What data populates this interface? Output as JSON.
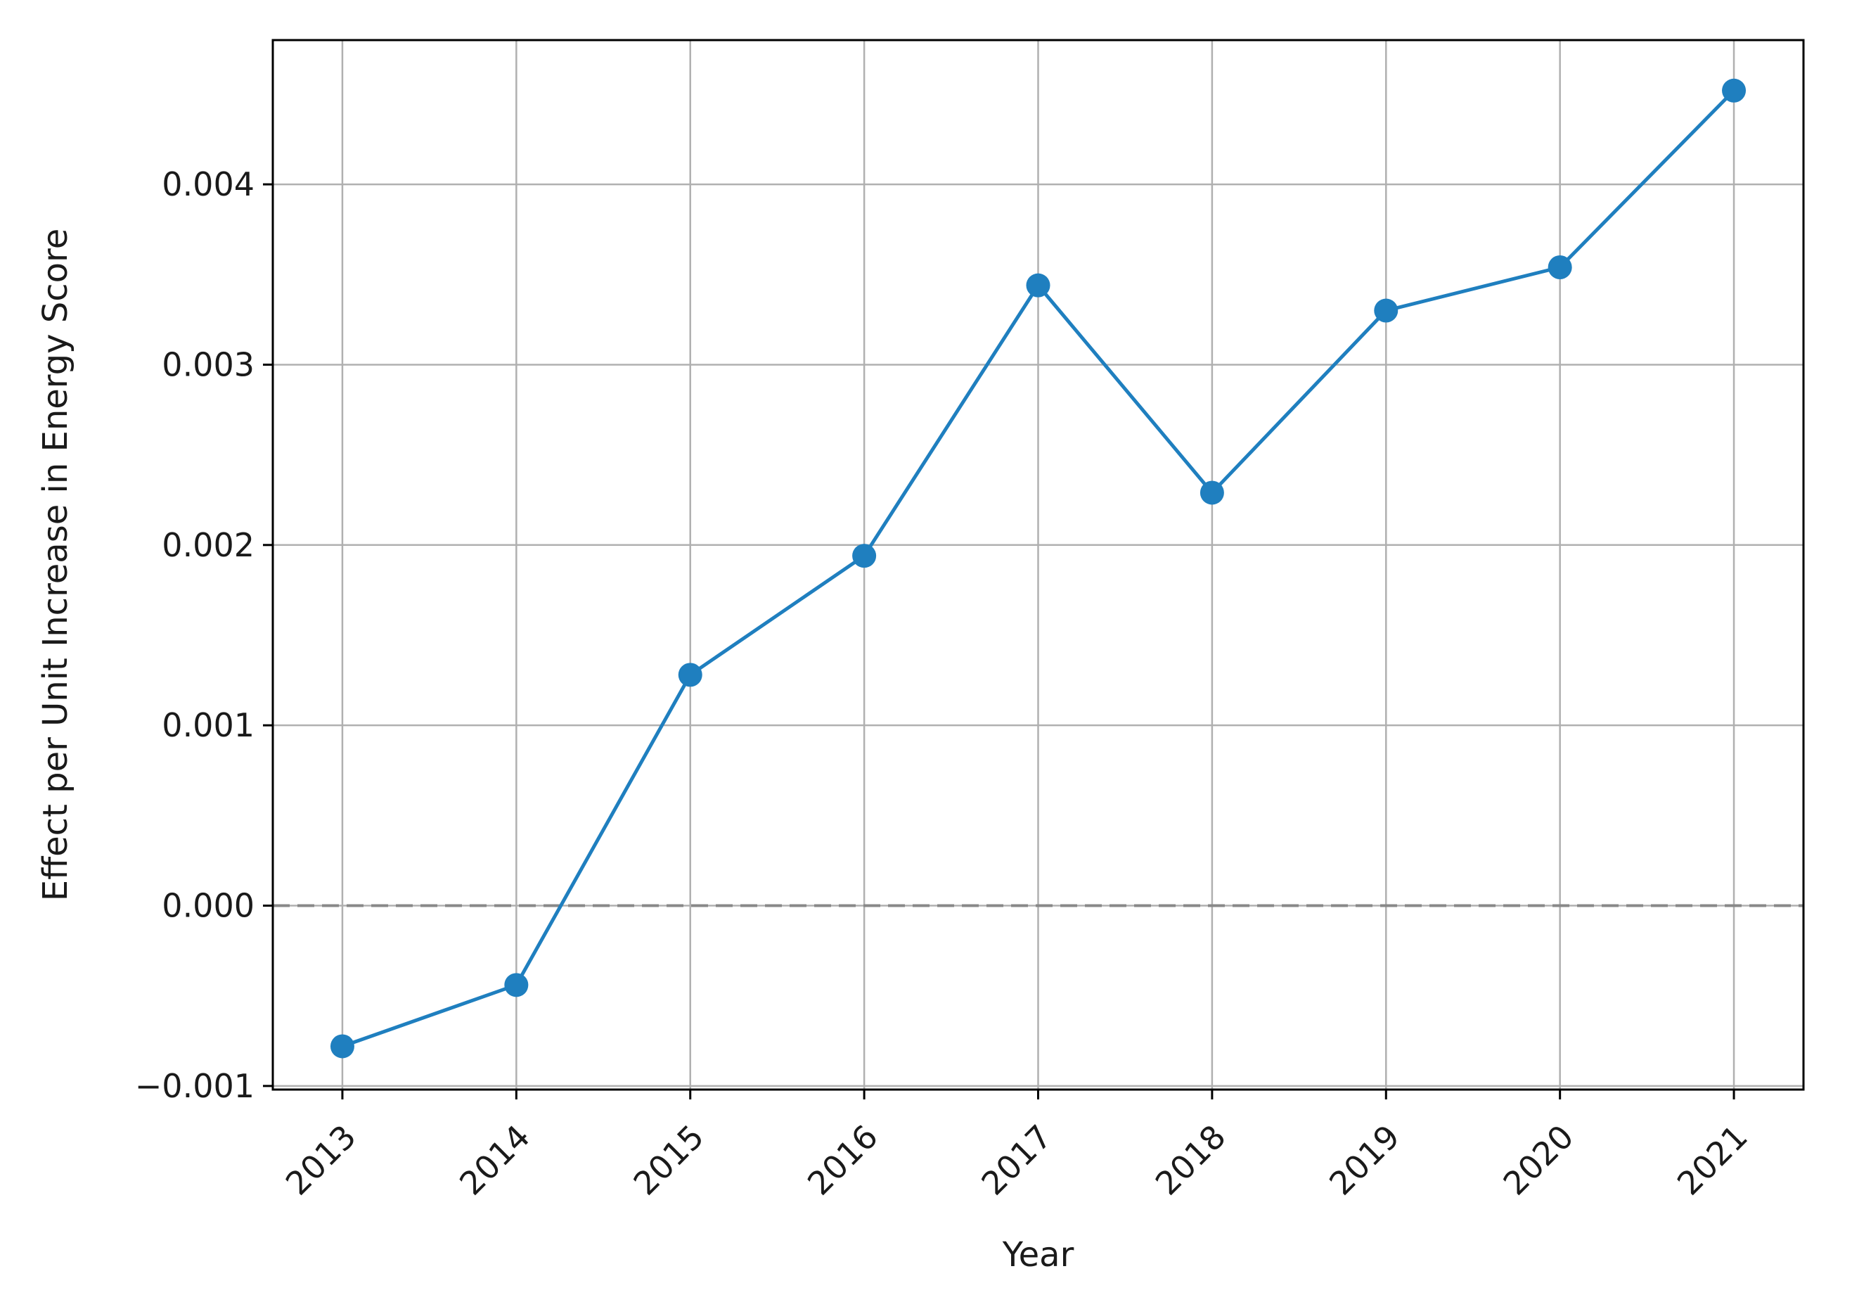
{
  "chart_data": {
    "type": "line",
    "xlabel": "Year",
    "ylabel": "Effect per Unit Increase in Energy Score",
    "x": [
      2013,
      2014,
      2015,
      2016,
      2017,
      2018,
      2019,
      2020,
      2021
    ],
    "x_tick_labels": [
      "2013",
      "2014",
      "2015",
      "2016",
      "2017",
      "2018",
      "2019",
      "2020",
      "2021"
    ],
    "series": [
      {
        "values": [
          -0.00078,
          -0.00044,
          0.00128,
          0.00194,
          0.00344,
          0.00229,
          0.0033,
          0.00354,
          0.00452
        ],
        "color": "#1f7fbf",
        "marker": "circle"
      }
    ],
    "y_ticks": [
      -0.001,
      0.0,
      0.001,
      0.002,
      0.003,
      0.004
    ],
    "y_tick_labels": [
      "−0.001",
      "0.000",
      "0.001",
      "0.002",
      "0.003",
      "0.004"
    ],
    "ylim": [
      -0.00102,
      0.0048
    ],
    "xlim": [
      2012.6,
      2021.4
    ],
    "reference_line": {
      "y": 0.0,
      "style": "dashed",
      "color": "#888888"
    },
    "grid": true,
    "legend": "none",
    "x_tick_rotation_deg": 45
  }
}
